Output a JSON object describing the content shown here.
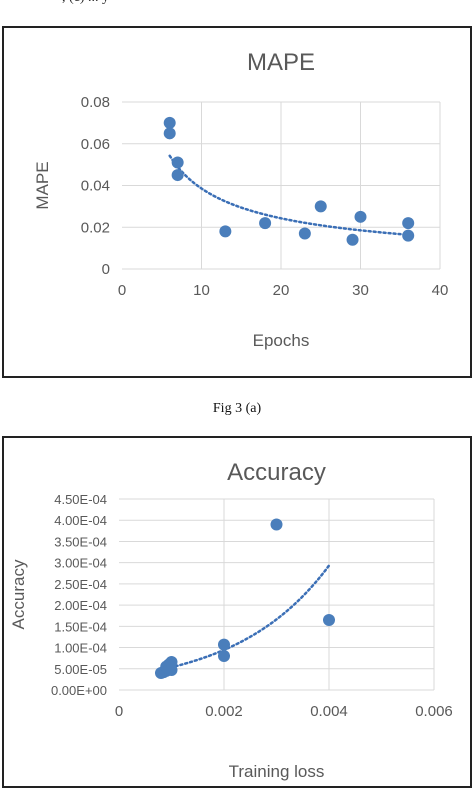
{
  "top_snippet": ", (c) ... y",
  "caption_a": "Fig 3 (a)",
  "colors": {
    "point": "#4a7ebb",
    "trend": "#3b6fb6",
    "grid": "#d9d9d9",
    "text": "#595959",
    "title": "#595959"
  },
  "chart_data": [
    {
      "type": "scatter",
      "title": "MAPE",
      "xlabel": "Epochs",
      "ylabel": "MAPE",
      "xlim": [
        0,
        40
      ],
      "ylim": [
        0,
        0.08
      ],
      "x_ticks": [
        "0",
        "10",
        "20",
        "30",
        "40"
      ],
      "y_ticks": [
        "0",
        "0.02",
        "0.04",
        "0.06",
        "0.08"
      ],
      "grid": true,
      "trendline": "power",
      "trend_range": [
        6,
        36
      ],
      "points": [
        {
          "x": 6,
          "y": 0.07
        },
        {
          "x": 6,
          "y": 0.065
        },
        {
          "x": 7,
          "y": 0.051
        },
        {
          "x": 7,
          "y": 0.045
        },
        {
          "x": 13,
          "y": 0.018
        },
        {
          "x": 18,
          "y": 0.022
        },
        {
          "x": 23,
          "y": 0.017
        },
        {
          "x": 25,
          "y": 0.03
        },
        {
          "x": 29,
          "y": 0.014
        },
        {
          "x": 30,
          "y": 0.025
        },
        {
          "x": 36,
          "y": 0.022
        },
        {
          "x": 36,
          "y": 0.016
        }
      ]
    },
    {
      "type": "scatter",
      "title": "Accuracy",
      "xlabel": "Training  loss",
      "ylabel": "Accuracy",
      "xlim": [
        0,
        0.006
      ],
      "ylim": [
        0,
        0.00045
      ],
      "x_ticks": [
        "0",
        "0.002",
        "0.004",
        "0.006"
      ],
      "y_ticks": [
        "0.00E+00",
        "5.00E-05",
        "1.00E-04",
        "1.50E-04",
        "2.00E-04",
        "2.50E-04",
        "3.00E-04",
        "3.50E-04",
        "4.00E-04",
        "4.50E-04"
      ],
      "grid": true,
      "trendline": "exponential",
      "trend_range": [
        0.0008,
        0.004
      ],
      "points": [
        {
          "x": 0.0008,
          "y": 4e-05
        },
        {
          "x": 0.00085,
          "y": 4.2e-05
        },
        {
          "x": 0.0009,
          "y": 4.5e-05
        },
        {
          "x": 0.0009,
          "y": 5.5e-05
        },
        {
          "x": 0.00095,
          "y": 6e-05
        },
        {
          "x": 0.00095,
          "y": 4.8e-05
        },
        {
          "x": 0.001,
          "y": 6.6e-05
        },
        {
          "x": 0.001,
          "y": 4.7e-05
        },
        {
          "x": 0.002,
          "y": 0.000107
        },
        {
          "x": 0.002,
          "y": 8e-05
        },
        {
          "x": 0.003,
          "y": 0.00039
        },
        {
          "x": 0.004,
          "y": 0.000165
        }
      ]
    }
  ]
}
